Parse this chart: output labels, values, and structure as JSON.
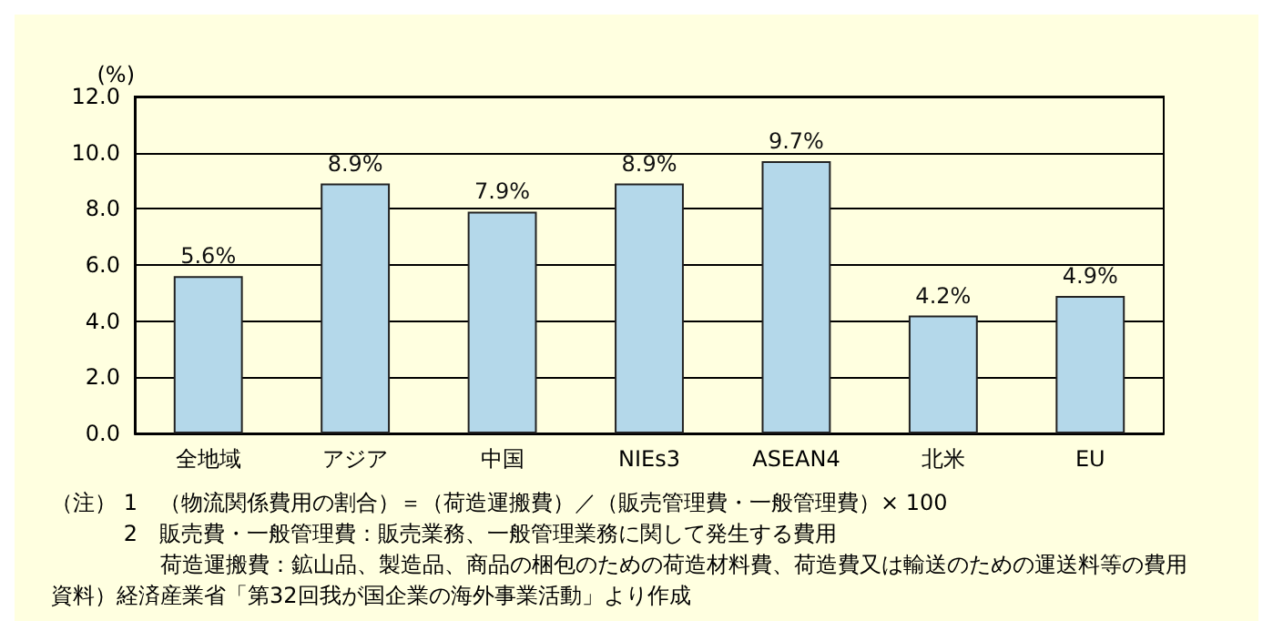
{
  "chart_data": {
    "type": "bar",
    "ylabel": "(%)",
    "categories": [
      "全地域",
      "アジア",
      "中国",
      "NIEs3",
      "ASEAN4",
      "北米",
      "EU"
    ],
    "values": [
      5.6,
      8.9,
      7.9,
      8.9,
      9.7,
      4.2,
      4.9
    ],
    "value_labels": [
      "5.6%",
      "8.9%",
      "7.9%",
      "8.9%",
      "9.7%",
      "4.2%",
      "4.9%"
    ],
    "color": "#b4d8ea",
    "ylim": [
      0,
      12
    ],
    "yticks": [
      {
        "value": 0,
        "label": "0.0"
      },
      {
        "value": 2,
        "label": "2.0"
      },
      {
        "value": 4,
        "label": "4.0"
      },
      {
        "value": 6,
        "label": "6.0"
      },
      {
        "value": 8,
        "label": "8.0"
      },
      {
        "value": 10,
        "label": "10.0"
      },
      {
        "value": 12,
        "label": "12.0"
      }
    ],
    "grid": "y",
    "annotations": [
      "（注） 1　（物流関係費用の割合）＝（荷造運搬費）／（販売管理費・一般管理費）× 100",
      "　　　 2　販売費・一般管理費：販売業務、一般管理業務に関して発生する費用",
      "　　　　　荷造運搬費：鉱山品、製造品、商品の梱包のための荷造材料費、荷造費又は輸送のための運送料等の費用",
      "資料）経済産業省「第32回我が国企業の海外事業活動」より作成"
    ]
  }
}
